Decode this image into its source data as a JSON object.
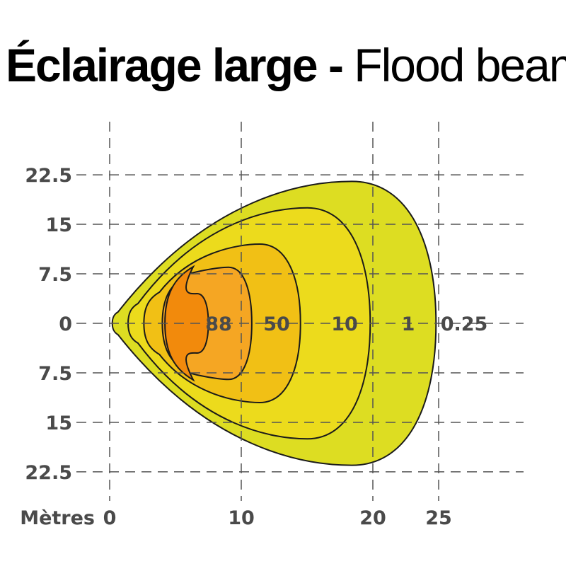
{
  "title": {
    "french": "Éclairage large -",
    "english": "Flood beam"
  },
  "chart_data": {
    "type": "isolux-diagram",
    "x_axis": {
      "label": "Mètres",
      "ticks": [
        {
          "value": 0,
          "label": "0"
        },
        {
          "value": 10,
          "label": "10"
        },
        {
          "value": 20,
          "label": "20"
        },
        {
          "value": 25,
          "label": "25"
        }
      ]
    },
    "y_axis": {
      "ticks": [
        {
          "value": 22.5,
          "label": "22.5"
        },
        {
          "value": 15,
          "label": "15"
        },
        {
          "value": 7.5,
          "label": "7.5"
        },
        {
          "value": 0,
          "label": "0"
        },
        {
          "value": -7.5,
          "label": "7.5"
        },
        {
          "value": -15,
          "label": "15"
        },
        {
          "value": -22.5,
          "label": "22.5"
        }
      ]
    },
    "zones": [
      {
        "lux": "0.25",
        "reach_m": 24.8,
        "half_width_m": 21.5,
        "color": "#dddd22"
      },
      {
        "lux": "1",
        "reach_m": 19.8,
        "half_width_m": 17.5,
        "color": "#ecdb1c"
      },
      {
        "lux": "10",
        "reach_m": 14.5,
        "half_width_m": 12.0,
        "color": "#f1c015"
      },
      {
        "lux": "50",
        "reach_m": 10.8,
        "half_width_m": 8.5,
        "color": "#f5a623"
      },
      {
        "lux": "88",
        "reach_m": 7.5,
        "half_width_m": 4.5,
        "color": "#f28a0c"
      }
    ],
    "grid": true
  }
}
